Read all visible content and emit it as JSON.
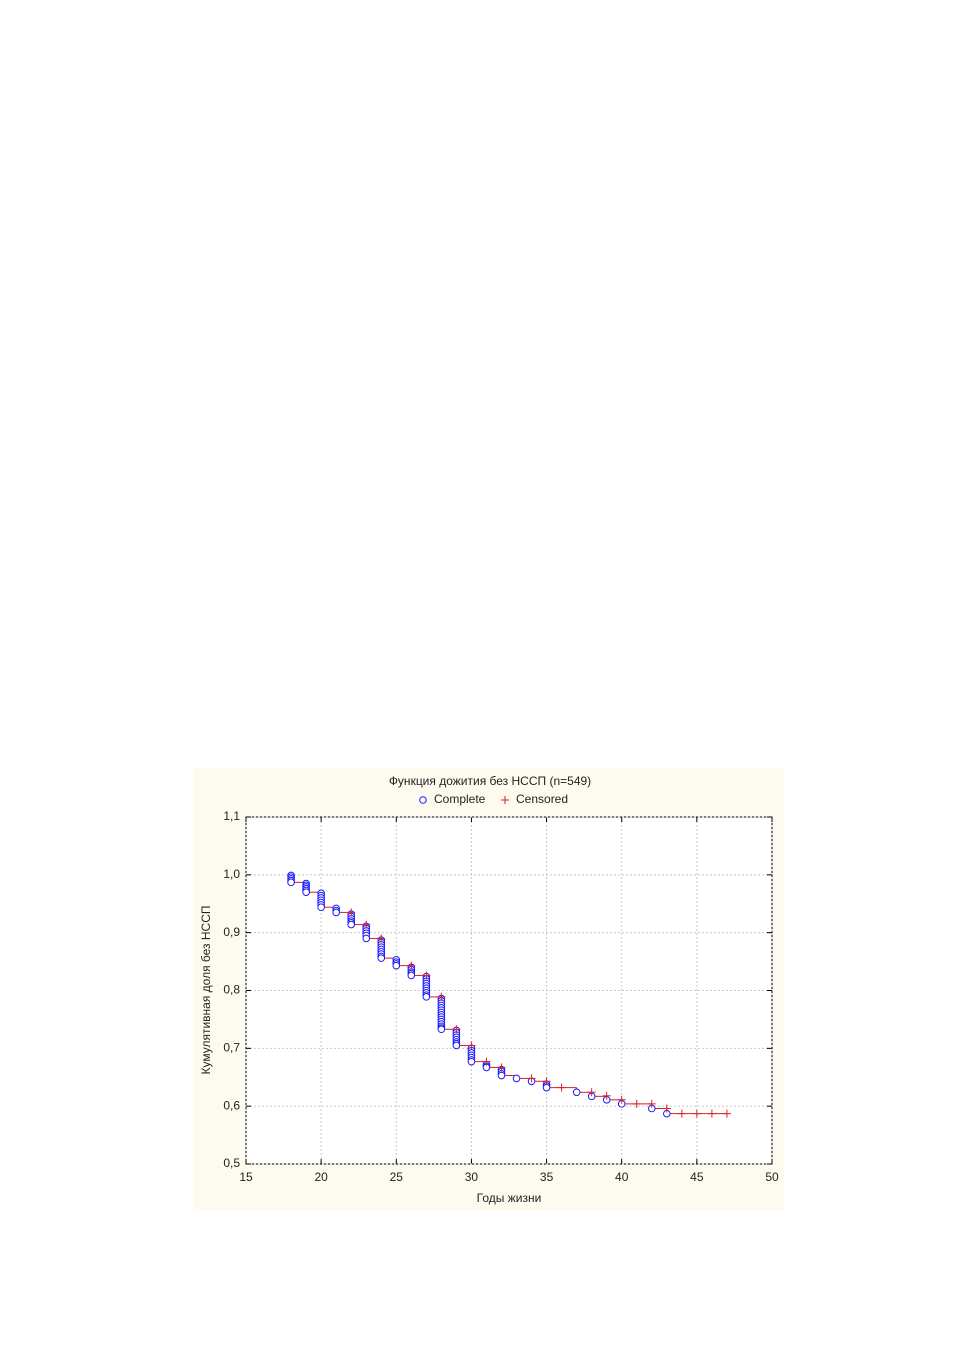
{
  "chart_data": {
    "type": "survival",
    "title": "Функция дожития без НССП (n=549)",
    "x_label": "Годы жизни",
    "y_label": "Кумулятивная доля без НССП",
    "xlim": [
      15,
      50
    ],
    "xticks": [
      15,
      20,
      25,
      30,
      35,
      40,
      45,
      50
    ],
    "ylim": [
      0.5,
      1.1
    ],
    "yticks": [
      {
        "value": 0.5,
        "label": "0,5"
      },
      {
        "value": 0.6,
        "label": "0,6"
      },
      {
        "value": 0.7,
        "label": "0,7"
      },
      {
        "value": 0.8,
        "label": "0,8"
      },
      {
        "value": 0.9,
        "label": "0,9"
      },
      {
        "value": 1.0,
        "label": "1,0"
      },
      {
        "value": 1.1,
        "label": "1,1"
      }
    ],
    "grid": true,
    "curve": {
      "color": "#d62020",
      "x": [
        18,
        18,
        19,
        20,
        21,
        22,
        23,
        24,
        25,
        26,
        27,
        28,
        29,
        30,
        31,
        32,
        33,
        34,
        35,
        37,
        38,
        39,
        40,
        42,
        43,
        47
      ],
      "y": [
        1.0,
        0.987,
        0.97,
        0.944,
        0.935,
        0.914,
        0.89,
        0.856,
        0.843,
        0.826,
        0.789,
        0.733,
        0.705,
        0.677,
        0.667,
        0.653,
        0.648,
        0.643,
        0.632,
        0.624,
        0.617,
        0.611,
        0.604,
        0.596,
        0.587,
        0.587
      ]
    },
    "series": [
      {
        "name": "Complete",
        "marker": "circle",
        "color": "#1a1aff",
        "x": [
          18,
          18,
          18,
          18,
          18,
          19,
          19,
          19,
          19,
          19,
          19,
          20,
          20,
          20,
          20,
          20,
          20,
          20,
          21,
          21,
          21,
          22,
          22,
          22,
          22,
          22,
          22,
          23,
          23,
          23,
          23,
          23,
          23,
          24,
          24,
          24,
          24,
          24,
          24,
          24,
          24,
          24,
          25,
          25,
          25,
          25,
          26,
          26,
          26,
          26,
          26,
          27,
          27,
          27,
          27,
          27,
          27,
          27,
          27,
          27,
          27,
          28,
          28,
          28,
          28,
          28,
          28,
          28,
          28,
          28,
          28,
          28,
          28,
          28,
          28,
          28,
          29,
          29,
          29,
          29,
          29,
          29,
          29,
          29,
          30,
          30,
          30,
          30,
          30,
          30,
          30,
          31,
          31,
          31,
          32,
          32,
          32,
          32,
          33,
          34,
          35,
          35,
          35,
          37,
          38,
          39,
          40,
          42,
          43
        ],
        "y": [
          0.999,
          0.996,
          0.993,
          0.99,
          0.987,
          0.985,
          0.982,
          0.979,
          0.976,
          0.973,
          0.97,
          0.968,
          0.964,
          0.96,
          0.956,
          0.952,
          0.948,
          0.944,
          0.942,
          0.938,
          0.935,
          0.932,
          0.928,
          0.924,
          0.92,
          0.917,
          0.914,
          0.911,
          0.907,
          0.903,
          0.899,
          0.895,
          0.89,
          0.887,
          0.883,
          0.879,
          0.875,
          0.871,
          0.867,
          0.863,
          0.859,
          0.856,
          0.853,
          0.849,
          0.846,
          0.843,
          0.84,
          0.836,
          0.832,
          0.829,
          0.826,
          0.824,
          0.82,
          0.816,
          0.812,
          0.808,
          0.804,
          0.8,
          0.796,
          0.792,
          0.789,
          0.786,
          0.782,
          0.778,
          0.774,
          0.77,
          0.766,
          0.762,
          0.758,
          0.754,
          0.75,
          0.746,
          0.742,
          0.738,
          0.735,
          0.733,
          0.731,
          0.727,
          0.723,
          0.719,
          0.715,
          0.711,
          0.708,
          0.705,
          0.7,
          0.696,
          0.692,
          0.688,
          0.684,
          0.68,
          0.677,
          0.672,
          0.669,
          0.667,
          0.663,
          0.66,
          0.656,
          0.653,
          0.648,
          0.643,
          0.638,
          0.635,
          0.632,
          0.624,
          0.617,
          0.611,
          0.604,
          0.596,
          0.587
        ]
      },
      {
        "name": "Censored",
        "marker": "plus",
        "color": "#e02020",
        "x": [
          22,
          23,
          24,
          26,
          27,
          28,
          29,
          30,
          31,
          32,
          34,
          35,
          36,
          38,
          39,
          40,
          41,
          42,
          43,
          44,
          45,
          46,
          47
        ],
        "y": [
          0.935,
          0.914,
          0.89,
          0.843,
          0.826,
          0.789,
          0.733,
          0.705,
          0.677,
          0.667,
          0.648,
          0.643,
          0.632,
          0.624,
          0.618,
          0.611,
          0.604,
          0.604,
          0.596,
          0.587,
          0.587,
          0.587,
          0.587
        ]
      }
    ]
  }
}
